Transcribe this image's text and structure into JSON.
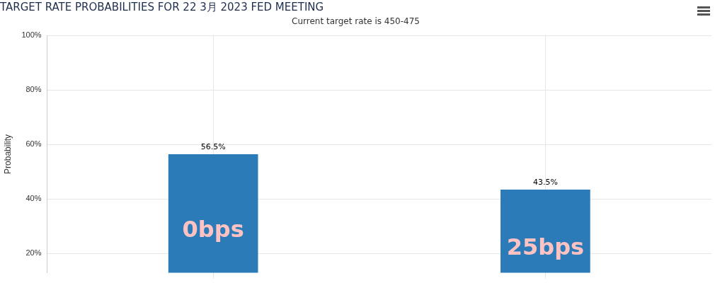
{
  "chart_data": {
    "type": "bar",
    "title": "TARGET RATE PROBABILITIES FOR 22 3月 2023 FED MEETING",
    "subtitle": "Current target rate is 450-475",
    "ylabel": "Probability",
    "categories": [
      null,
      null
    ],
    "values": [
      56.5,
      43.5
    ],
    "color": "#2b7bb9",
    "value_labels": [
      "56.5%",
      "43.5%"
    ],
    "annotations": [
      "0bps",
      "25bps"
    ],
    "ylim": [
      13,
      100
    ],
    "yticks": [
      {
        "value": 20,
        "label": "20%"
      },
      {
        "value": 40,
        "label": "40%"
      },
      {
        "value": 60,
        "label": "60%"
      },
      {
        "value": 80,
        "label": "80%"
      },
      {
        "value": 100,
        "label": "100%"
      }
    ],
    "grid": true,
    "legend": false
  }
}
